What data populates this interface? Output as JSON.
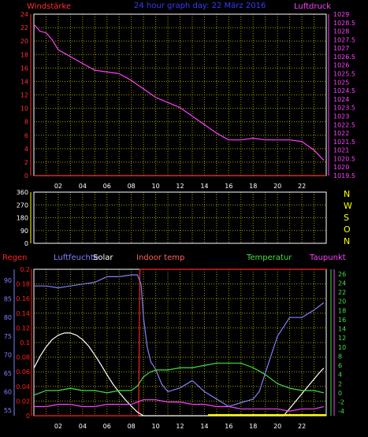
{
  "header": {
    "left_label": "Windstärke",
    "center_label": "24 hour graph day:  22 März 2016",
    "right_label": "Luftdruck"
  },
  "panel_wind": {
    "x_ticks": [
      "02",
      "04",
      "06",
      "08",
      "10",
      "12",
      "14",
      "16",
      "18",
      "20",
      "22"
    ],
    "left_ticks": [
      "0",
      "2",
      "4",
      "6",
      "8",
      "10",
      "12",
      "14",
      "16",
      "18",
      "20",
      "22",
      "24"
    ],
    "right_ticks": [
      "1019.5",
      "1020",
      "1020.5",
      "1021",
      "1021.5",
      "1022",
      "1022.5",
      "1023",
      "1023.5",
      "1024",
      "1024.5",
      "1025",
      "1025.5",
      "1026",
      "1026.5",
      "1027",
      "1027.5",
      "1028",
      "1028.5",
      "1029"
    ]
  },
  "panel_direction": {
    "left_ticks": [
      "0",
      "90",
      "180",
      "270",
      "360"
    ],
    "right_labels": [
      "N",
      "W",
      "S",
      "O",
      "N"
    ]
  },
  "panel_climate": {
    "labels": {
      "regen": "Regen",
      "luftfeuchte": "Luftfeuchte",
      "solar": "Solar",
      "indoor": "Indoor temp",
      "temperatur": "Temperatur",
      "taupunkt": "Taupunkt"
    },
    "x_ticks": [
      "02",
      "04",
      "06",
      "08",
      "10",
      "12",
      "14",
      "16",
      "18",
      "20",
      "22"
    ],
    "rain_ticks": [
      "0",
      "0.02",
      "0.04",
      "0.06",
      "0.08",
      "0.1",
      "0.12",
      "0.14",
      "0.16",
      "0.18",
      "0.2"
    ],
    "humidity_ticks": [
      "55",
      "60",
      "65",
      "70",
      "75",
      "80",
      "85",
      "90"
    ],
    "temp_ticks": [
      "-4",
      "-2",
      "0",
      "2",
      "4",
      "6",
      "8",
      "10",
      "12",
      "14",
      "16",
      "18",
      "20",
      "22",
      "24",
      "26"
    ]
  },
  "colors": {
    "background": "#000000",
    "grid": "#9f9f00",
    "frame": "#ffffff",
    "windstaerke": "#ff3030",
    "header_center": "#3a3aff",
    "luftdruck": "#ff40ff",
    "rain": "#ff2020",
    "humidity": "#8080ff",
    "solar": "#ffffff",
    "indoor": "#ff6060",
    "temperature": "#40e040",
    "dewpoint": "#ff40ff",
    "direction_labels": "#ffff00"
  },
  "chart_data": [
    {
      "type": "line",
      "name": "wind-pressure",
      "x_range": [
        0,
        24
      ],
      "ylim_left": [
        0,
        24
      ],
      "ylim_right": [
        1019.5,
        1029
      ],
      "grid": true,
      "series": [
        {
          "name": "Luftdruck",
          "axis": "right",
          "x": [
            0.0,
            0.5,
            1.0,
            1.5,
            2.0,
            3.0,
            4.0,
            5.0,
            6.0,
            7.0,
            8.0,
            9.0,
            10.0,
            11.0,
            12.0,
            13.0,
            14.0,
            15.0,
            16.0,
            17.0,
            18.0,
            19.0,
            20.0,
            21.0,
            22.0,
            23.0,
            23.8
          ],
          "values": [
            1028.4,
            1028.0,
            1027.9,
            1027.5,
            1026.9,
            1026.5,
            1026.1,
            1025.7,
            1025.6,
            1025.5,
            1025.1,
            1024.6,
            1024.1,
            1023.8,
            1023.5,
            1023.0,
            1022.5,
            1022.0,
            1021.6,
            1021.6,
            1021.7,
            1021.6,
            1021.6,
            1021.6,
            1021.5,
            1021.0,
            1020.4
          ]
        },
        {
          "name": "Windstärke",
          "axis": "left",
          "x": [
            0,
            24
          ],
          "values": [
            0,
            0
          ]
        }
      ]
    },
    {
      "type": "line",
      "name": "wind-direction",
      "x_range": [
        0,
        24
      ],
      "ylim": [
        0,
        360
      ],
      "grid": true,
      "series": []
    },
    {
      "type": "line",
      "name": "climate",
      "x_range": [
        0,
        24
      ],
      "ylim_rain": [
        0,
        0.2
      ],
      "ylim_humidity": [
        53.5,
        93
      ],
      "ylim_temperature": [
        -5,
        27
      ],
      "grid": true,
      "series": [
        {
          "name": "Luftfeuchte",
          "axis": "humidity",
          "x": [
            0.0,
            1.0,
            2.0,
            3.0,
            4.0,
            5.0,
            6.0,
            7.0,
            8.0,
            8.5,
            8.8,
            9.0,
            9.3,
            9.6,
            10.0,
            10.5,
            11.0,
            12.0,
            13.0,
            14.0,
            15.0,
            15.5,
            16.0,
            17.0,
            18.0,
            18.5,
            19.0,
            19.5,
            20.0,
            21.0,
            22.0,
            23.0,
            23.8
          ],
          "values": [
            88.5,
            88.5,
            88,
            88.5,
            89,
            89.5,
            91,
            91,
            91.5,
            91.5,
            89,
            80,
            72,
            68,
            66,
            62,
            60,
            61,
            63,
            60,
            58,
            57,
            56,
            57,
            58,
            60,
            65,
            70,
            75,
            80,
            80,
            82,
            84
          ]
        },
        {
          "name": "Solar",
          "axis": "rain",
          "x": [
            0.0,
            0.5,
            1.0,
            1.5,
            2.0,
            2.5,
            3.0,
            3.5,
            4.0,
            4.5,
            5.0,
            5.5,
            6.0,
            6.5,
            7.0,
            7.5,
            8.0,
            8.5,
            9.0,
            20.5,
            21.0,
            21.5,
            22.0,
            22.5,
            23.0,
            23.5,
            23.8
          ],
          "values": [
            0.065,
            0.081,
            0.094,
            0.104,
            0.11,
            0.113,
            0.113,
            0.11,
            0.104,
            0.095,
            0.083,
            0.07,
            0.056,
            0.043,
            0.032,
            0.022,
            0.013,
            0.005,
            0.0,
            0.0,
            0.01,
            0.02,
            0.03,
            0.04,
            0.05,
            0.06,
            0.065
          ]
        },
        {
          "name": "Indoor temp",
          "axis": "rain",
          "x": [
            0,
            8.6,
            8.7,
            24
          ],
          "values": [
            0.0,
            0.0,
            0.2,
            0.2
          ]
        },
        {
          "name": "Temperatur",
          "axis": "temperature",
          "x": [
            0.0,
            0.5,
            1.0,
            2.0,
            3.0,
            4.0,
            5.0,
            6.0,
            7.0,
            8.0,
            8.5,
            9.0,
            9.5,
            10.0,
            11.0,
            12.0,
            13.0,
            14.0,
            15.0,
            16.0,
            17.0,
            18.0,
            19.0,
            20.0,
            21.0,
            22.0,
            23.0,
            23.8
          ],
          "values": [
            -0.5,
            0.0,
            0.5,
            0.5,
            1.0,
            0.5,
            0.5,
            0.0,
            0.5,
            0.5,
            1.5,
            3.5,
            4.5,
            5.0,
            5.0,
            5.5,
            5.5,
            6.0,
            6.5,
            6.5,
            6.5,
            5.5,
            4.0,
            2.0,
            1.0,
            0.5,
            0.5,
            0.0
          ]
        },
        {
          "name": "Taupunkt",
          "axis": "temperature",
          "x": [
            0.0,
            1.0,
            2.0,
            3.0,
            4.0,
            5.0,
            6.0,
            7.0,
            8.0,
            8.5,
            9.0,
            10.0,
            11.0,
            12.0,
            13.0,
            14.0,
            15.0,
            16.0,
            17.0,
            18.0,
            19.0,
            20.0,
            21.0,
            22.0,
            23.0,
            23.8
          ],
          "values": [
            -3.0,
            -3.0,
            -2.5,
            -2.5,
            -3.0,
            -3.0,
            -2.5,
            -2.5,
            -2.5,
            -2.0,
            -1.5,
            -1.5,
            -2.0,
            -2.0,
            -2.5,
            -2.5,
            -3.0,
            -3.0,
            -3.5,
            -3.5,
            -3.5,
            -3.5,
            -4.0,
            -3.5,
            -3.5,
            -3.0
          ]
        }
      ]
    }
  ]
}
